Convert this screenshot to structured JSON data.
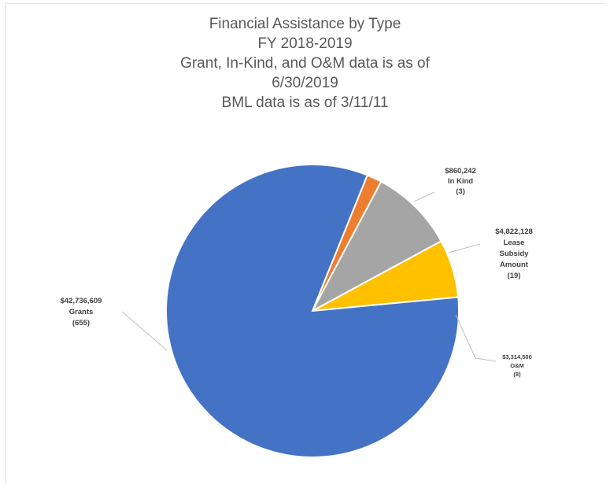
{
  "chart_data": {
    "type": "pie",
    "title_lines": [
      "Financial Assistance by Type",
      "FY 2018-2019",
      "Grant, In-Kind, and O&M data is as of",
      "6/30/2019",
      "BML data is as of 3/11/11"
    ],
    "slices": [
      {
        "key": "inkind",
        "value": 860242,
        "label_lines": [
          "$860,242",
          "In Kind",
          "(3)"
        ],
        "color": "#ED7D31"
      },
      {
        "key": "lease",
        "value": 4822128,
        "label_lines": [
          "$4,822,128",
          "Lease",
          "Subsidy",
          "Amount",
          "(19)"
        ],
        "color": "#A5A5A5"
      },
      {
        "key": "om",
        "value": 3314500,
        "label_lines": [
          "$3,314,500",
          "O&M",
          "(8)"
        ],
        "color": "#FFC000"
      },
      {
        "key": "grants",
        "value": 42736609,
        "label_lines": [
          "$42,736,609",
          "Grants",
          "(655)"
        ],
        "color": "#4472C4"
      }
    ],
    "start_angle_deg": 22,
    "direction": "clockwise",
    "legend": "none"
  }
}
